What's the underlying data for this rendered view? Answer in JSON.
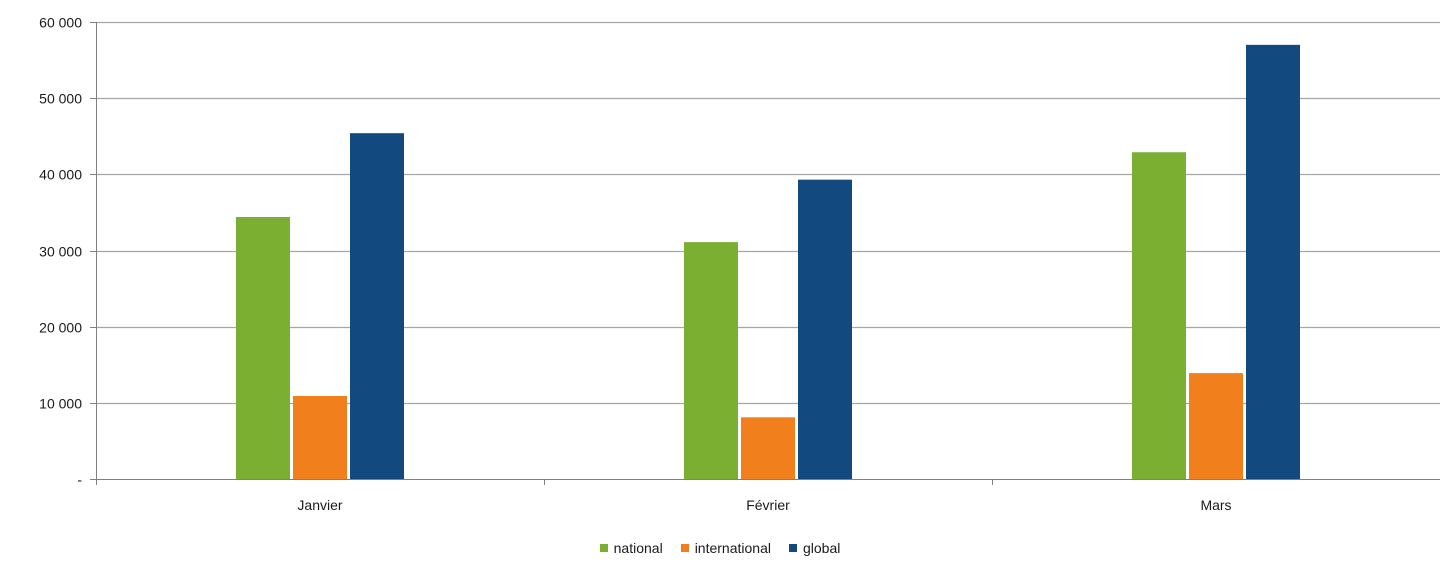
{
  "chart_data": {
    "type": "bar",
    "categories": [
      "Janvier",
      "Février",
      "Mars"
    ],
    "series": [
      {
        "name": "national",
        "color": "#7aaf31",
        "values": [
          34400,
          31100,
          42900
        ]
      },
      {
        "name": "international",
        "color": "#f07f1c",
        "values": [
          10900,
          8100,
          13900
        ]
      },
      {
        "name": "global",
        "color": "#124a7f",
        "values": [
          45400,
          39300,
          57000
        ]
      }
    ],
    "yticks": [
      0,
      10000,
      20000,
      30000,
      40000,
      50000,
      60000
    ],
    "ytick_labels": [
      "-",
      "10 000",
      "20 000",
      "30 000",
      "40 000",
      "50 000",
      "60 000"
    ],
    "ylim": [
      0,
      60000
    ],
    "grid": true,
    "legend_position": "bottom-center"
  }
}
